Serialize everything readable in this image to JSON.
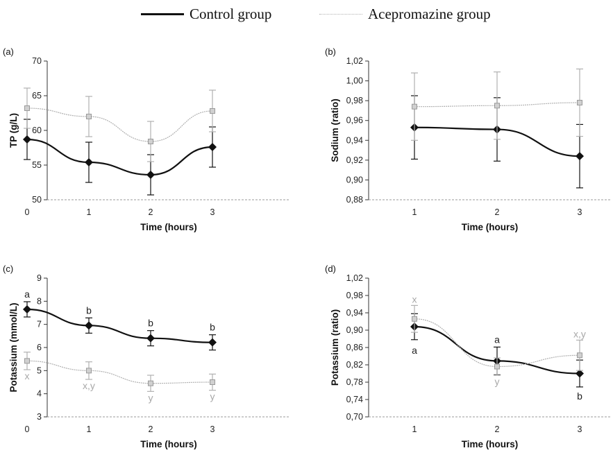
{
  "legend": {
    "items": [
      {
        "label": "Control group",
        "color": "#111111"
      },
      {
        "label": "Acepromazine group",
        "color": "#b0b0b0"
      }
    ]
  },
  "chart_data": [
    {
      "type": "line",
      "panel_label": "(a)",
      "xlabel": "Time (hours)",
      "ylabel": "TP (g/L)",
      "x": [
        0,
        1,
        2,
        3
      ],
      "xticks": [
        "0",
        "1",
        "2",
        "3"
      ],
      "ylim": [
        50,
        70
      ],
      "yticks": [
        "50",
        "55",
        "60",
        "65",
        "70"
      ],
      "series": [
        {
          "name": "Control group",
          "values": [
            58.7,
            55.4,
            53.6,
            57.6
          ],
          "errors": [
            2.9,
            2.9,
            2.9,
            2.9
          ],
          "annotations": []
        },
        {
          "name": "Acepromazine group",
          "values": [
            63.2,
            62.0,
            58.4,
            62.8
          ],
          "errors": [
            2.9,
            2.9,
            2.9,
            3.0
          ],
          "annotations": []
        }
      ]
    },
    {
      "type": "line",
      "panel_label": "(b)",
      "xlabel": "Time (hours)",
      "ylabel": "Sodium (ratio)",
      "x": [
        1,
        2,
        3
      ],
      "xticks": [
        "1",
        "2",
        "3"
      ],
      "ylim": [
        0.88,
        1.02
      ],
      "yticks": [
        "0,88",
        "0,90",
        "0,92",
        "0,94",
        "0,96",
        "0,98",
        "1,00",
        "1,02"
      ],
      "series": [
        {
          "name": "Control group",
          "values": [
            0.953,
            0.951,
            0.924
          ],
          "errors": [
            0.032,
            0.032,
            0.032
          ],
          "annotations": []
        },
        {
          "name": "Acepromazine group",
          "values": [
            0.974,
            0.975,
            0.978
          ],
          "errors": [
            0.034,
            0.034,
            0.034
          ],
          "annotations": []
        }
      ]
    },
    {
      "type": "line",
      "panel_label": "(c)",
      "xlabel": "Time (hours)",
      "ylabel": "Potassium (mmol/L)",
      "x": [
        0,
        1,
        2,
        3
      ],
      "xticks": [
        "0",
        "1",
        "2",
        "3"
      ],
      "ylim": [
        3,
        9
      ],
      "yticks": [
        "3",
        "4",
        "5",
        "6",
        "7",
        "8",
        "9"
      ],
      "series": [
        {
          "name": "Control group",
          "values": [
            7.65,
            6.95,
            6.4,
            6.22
          ],
          "errors": [
            0.33,
            0.33,
            0.33,
            0.33
          ],
          "annotations": [
            "a",
            "b",
            "b",
            "b"
          ]
        },
        {
          "name": "Acepromazine group",
          "values": [
            5.42,
            5.0,
            4.45,
            4.5
          ],
          "errors": [
            0.38,
            0.38,
            0.35,
            0.35
          ],
          "annotations": [
            "x",
            "x,y",
            "y",
            "y"
          ]
        }
      ]
    },
    {
      "type": "line",
      "panel_label": "(d)",
      "xlabel": "Time (hours)",
      "ylabel": "Potassium (ratio)",
      "x": [
        1,
        2,
        3
      ],
      "xticks": [
        "1",
        "2",
        "3"
      ],
      "ylim": [
        0.7,
        1.02
      ],
      "yticks": [
        "0,70",
        "0,74",
        "0,78",
        "0,82",
        "0,86",
        "0,90",
        "0,94",
        "0,98",
        "1,02"
      ],
      "series": [
        {
          "name": "Control group",
          "values": [
            0.908,
            0.829,
            0.8
          ],
          "errors": [
            0.03,
            0.032,
            0.031
          ],
          "annotations": [
            "a",
            "a",
            "b"
          ]
        },
        {
          "name": "Acepromazine group",
          "values": [
            0.926,
            0.816,
            0.842
          ],
          "errors": [
            0.031,
            0.02,
            0.035
          ],
          "annotations": [
            "x",
            "y",
            "x,y"
          ]
        }
      ]
    }
  ]
}
